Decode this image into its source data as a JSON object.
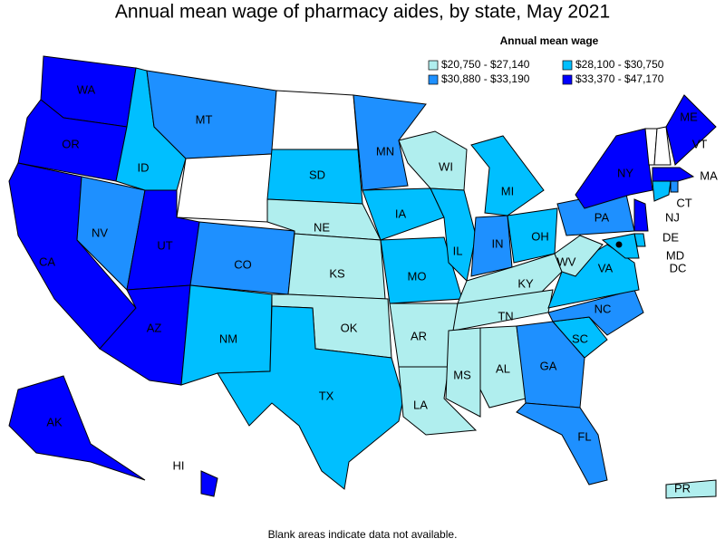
{
  "chart_data": {
    "type": "choropleth",
    "title": "Annual mean wage of pharmacy aides, by state, May 2021",
    "legend_title": "Annual mean wage",
    "legend": [
      {
        "label": "$20,750 - $27,140",
        "color": "#b0eeee"
      },
      {
        "label": "$28,100 - $30,750",
        "color": "#00bfff"
      },
      {
        "label": "$30,880 - $33,190",
        "color": "#1e90ff"
      },
      {
        "label": "$33,370 - $47,170",
        "color": "#0000ff"
      }
    ],
    "blank_color": "#ffffff",
    "states": [
      {
        "label": "WA",
        "bin": 3
      },
      {
        "label": "OR",
        "bin": 3
      },
      {
        "label": "CA",
        "bin": 3
      },
      {
        "label": "NV",
        "bin": 2
      },
      {
        "label": "ID",
        "bin": 1
      },
      {
        "label": "MT",
        "bin": 2
      },
      {
        "label": null,
        "bin": null
      },
      {
        "label": "UT",
        "bin": 3
      },
      {
        "label": "AZ",
        "bin": 3
      },
      {
        "label": "CO",
        "bin": 2
      },
      {
        "label": "NM",
        "bin": 1
      },
      {
        "label": null,
        "bin": null
      },
      {
        "label": "SD",
        "bin": 1
      },
      {
        "label": "NE",
        "bin": 0
      },
      {
        "label": "KS",
        "bin": 0
      },
      {
        "label": "OK",
        "bin": 0
      },
      {
        "label": "TX",
        "bin": 1
      },
      {
        "label": "MN",
        "bin": 2
      },
      {
        "label": "IA",
        "bin": 1
      },
      {
        "label": "MO",
        "bin": 1
      },
      {
        "label": "AR",
        "bin": 0
      },
      {
        "label": "LA",
        "bin": 0
      },
      {
        "label": "WI",
        "bin": 0
      },
      {
        "label": "IL",
        "bin": 1
      },
      {
        "label": "MI",
        "bin": 1
      },
      {
        "label": "IN",
        "bin": 2
      },
      {
        "label": "OH",
        "bin": 1
      },
      {
        "label": "KY",
        "bin": 0
      },
      {
        "label": "TN",
        "bin": 0
      },
      {
        "label": "MS",
        "bin": 0
      },
      {
        "label": "AL",
        "bin": 0
      },
      {
        "label": "GA",
        "bin": 2
      },
      {
        "label": "FL",
        "bin": 2
      },
      {
        "label": "SC",
        "bin": 1
      },
      {
        "label": "NC",
        "bin": 2
      },
      {
        "label": "VA",
        "bin": 1
      },
      {
        "label": "WV",
        "bin": 0
      },
      {
        "label": "PA",
        "bin": 2
      },
      {
        "label": "NY",
        "bin": 3
      },
      {
        "label": "VT",
        "bin": null
      },
      {
        "label": null,
        "bin": null
      },
      {
        "label": "ME",
        "bin": 3
      },
      {
        "label": "MA",
        "bin": 3
      },
      {
        "label": null,
        "bin": 2
      },
      {
        "label": "CT",
        "bin": 1
      },
      {
        "label": "NJ",
        "bin": 3
      },
      {
        "label": "DE",
        "bin": 1
      },
      {
        "label": "MD",
        "bin": 1
      },
      {
        "label": "DC",
        "bin": 3
      },
      {
        "label": "AK",
        "bin": 3
      },
      {
        "label": "HI",
        "bin": 3
      },
      {
        "label": "PR",
        "bin": 0
      }
    ],
    "footnote": "Blank areas indicate data not available."
  }
}
